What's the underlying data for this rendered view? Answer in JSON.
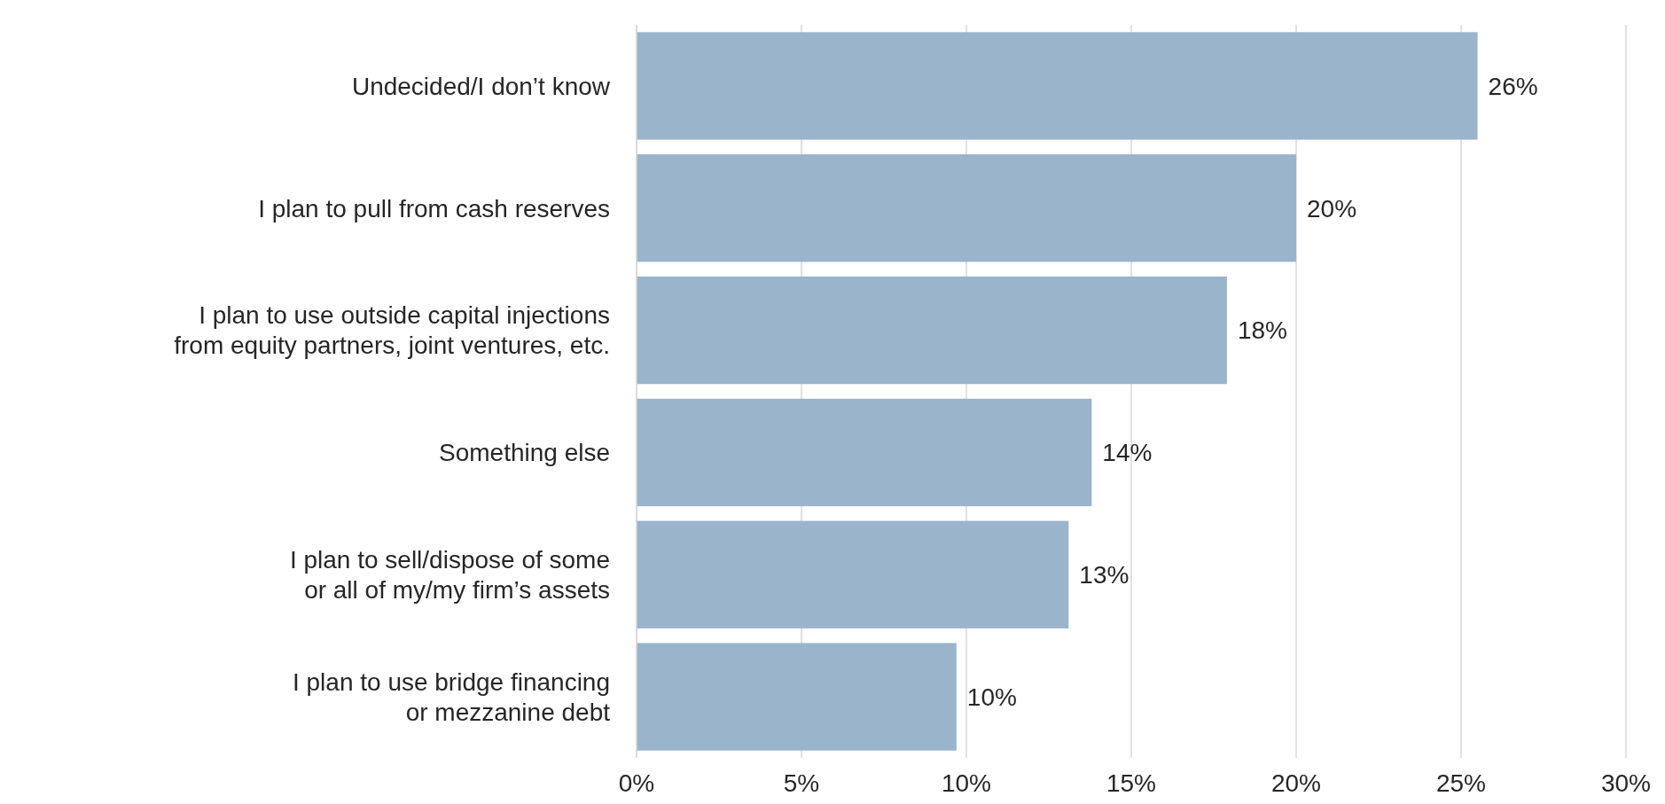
{
  "chart_data": {
    "type": "bar",
    "orientation": "horizontal",
    "categories": [
      "Undecided/I don’t know",
      "I plan to pull from cash reserves",
      "I plan to use outside capital injections\nfrom equity partners, joint ventures, etc.",
      "Something else",
      "I plan to sell/dispose of some\nor all of my/my firm’s assets",
      "I plan to use bridge financing\nor mezzanine debt"
    ],
    "values": [
      25.5,
      20.0,
      17.9,
      13.8,
      13.1,
      9.7
    ],
    "value_labels": [
      "26%",
      "20%",
      "18%",
      "14%",
      "13%",
      "10%"
    ],
    "color": "#9ab4cc",
    "xlim": [
      0,
      30
    ],
    "xticks": [
      {
        "value": 0,
        "label": "0%"
      },
      {
        "value": 5,
        "label": "5%"
      },
      {
        "value": 10,
        "label": "10%"
      },
      {
        "value": 15,
        "label": "15%"
      },
      {
        "value": 20,
        "label": "20%"
      },
      {
        "value": 25,
        "label": "25%"
      },
      {
        "value": 30,
        "label": "30%"
      }
    ],
    "grid": "x"
  }
}
